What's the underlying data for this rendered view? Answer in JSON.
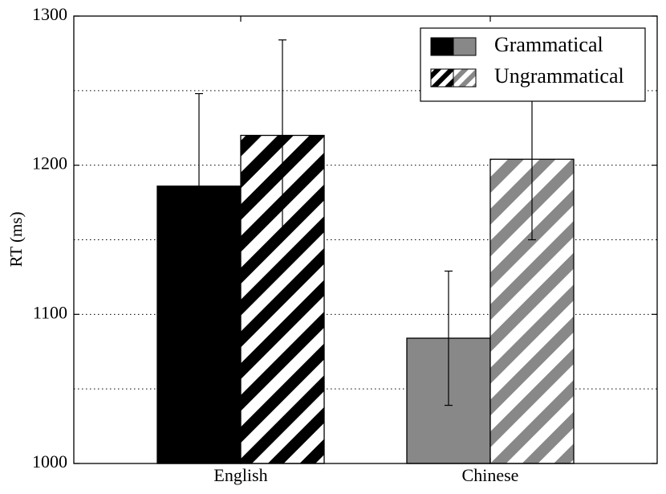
{
  "chart_data": {
    "type": "bar",
    "categories": [
      "English",
      "Chinese"
    ],
    "series": [
      {
        "name": "Grammatical",
        "values": [
          1186,
          1084
        ],
        "error_low": [
          1124,
          1039
        ],
        "error_high": [
          1248,
          1129
        ],
        "colors": [
          "#000000",
          "#888888"
        ],
        "hatched": false
      },
      {
        "name": "Ungrammatical",
        "values": [
          1220,
          1204
        ],
        "error_low": [
          1156,
          1150
        ],
        "error_high": [
          1284,
          1258
        ],
        "colors": [
          "#000000",
          "#888888"
        ],
        "hatched": true
      }
    ],
    "ylabel": "RT (ms)",
    "xlabel": "",
    "ylim": [
      1000,
      1300
    ],
    "yticks": [
      "1000",
      "1100",
      "1200",
      "1300"
    ],
    "minor_gridlines": [
      1050,
      1150,
      1250
    ],
    "major_gridlines": [
      1100,
      1200
    ],
    "grid": true,
    "legend_position": "top-right"
  }
}
